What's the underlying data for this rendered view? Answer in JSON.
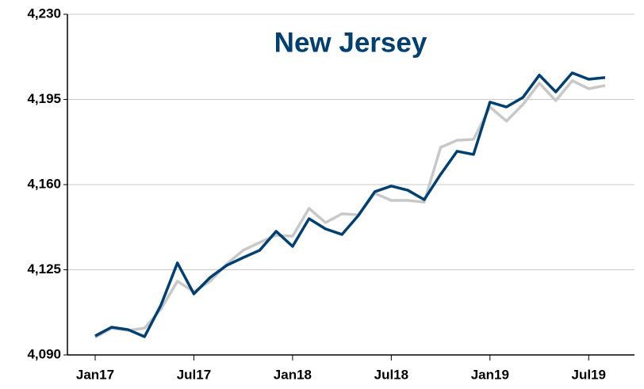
{
  "chart_data": {
    "type": "line",
    "title": "New Jersey",
    "categories": [
      "Jan17",
      null,
      null,
      null,
      null,
      null,
      "Jul17",
      null,
      null,
      null,
      null,
      null,
      "Jan18",
      null,
      null,
      null,
      null,
      null,
      "Jul18",
      null,
      null,
      null,
      null,
      null,
      "Jan19",
      null,
      null,
      null,
      null,
      null,
      "Jul19",
      null
    ],
    "series": [
      {
        "color": "#003f72",
        "values": [
          4097.8,
          4101.4,
          4100.4,
          4097.5,
          4110.5,
          4127.8,
          4115.1,
          4121.9,
          4126.8,
          4130.0,
          4133.0,
          4140.8,
          4134.6,
          4146.0,
          4141.8,
          4139.5,
          4147.3,
          4157.1,
          4159.4,
          4157.7,
          4153.8,
          4164.2,
          4173.7,
          4172.4,
          4193.9,
          4191.9,
          4195.8,
          4205.0,
          4198.1,
          4205.9,
          4203.3,
          4204.0
        ]
      },
      {
        "color": "#c8c8c8",
        "values": [
          4097.2,
          4101.0,
          4100.1,
          4101.0,
          4108.9,
          4120.3,
          4116.0,
          4120.3,
          4127.4,
          4133.0,
          4136.2,
          4139.2,
          4138.8,
          4150.2,
          4144.4,
          4148.0,
          4147.6,
          4156.4,
          4153.5,
          4153.5,
          4152.8,
          4175.3,
          4178.2,
          4178.6,
          4191.9,
          4186.1,
          4192.9,
          4201.7,
          4194.5,
          4202.7,
          4199.4,
          4200.7
        ]
      }
    ],
    "ylim": [
      4090,
      4230
    ],
    "yticks": [
      {
        "value": 4090,
        "label": "4,090"
      },
      {
        "value": 4125,
        "label": "4,125"
      },
      {
        "value": 4160,
        "label": "4,160"
      },
      {
        "value": 4195,
        "label": "4,195"
      },
      {
        "value": 4230,
        "label": "4,230"
      }
    ],
    "grid": true
  }
}
